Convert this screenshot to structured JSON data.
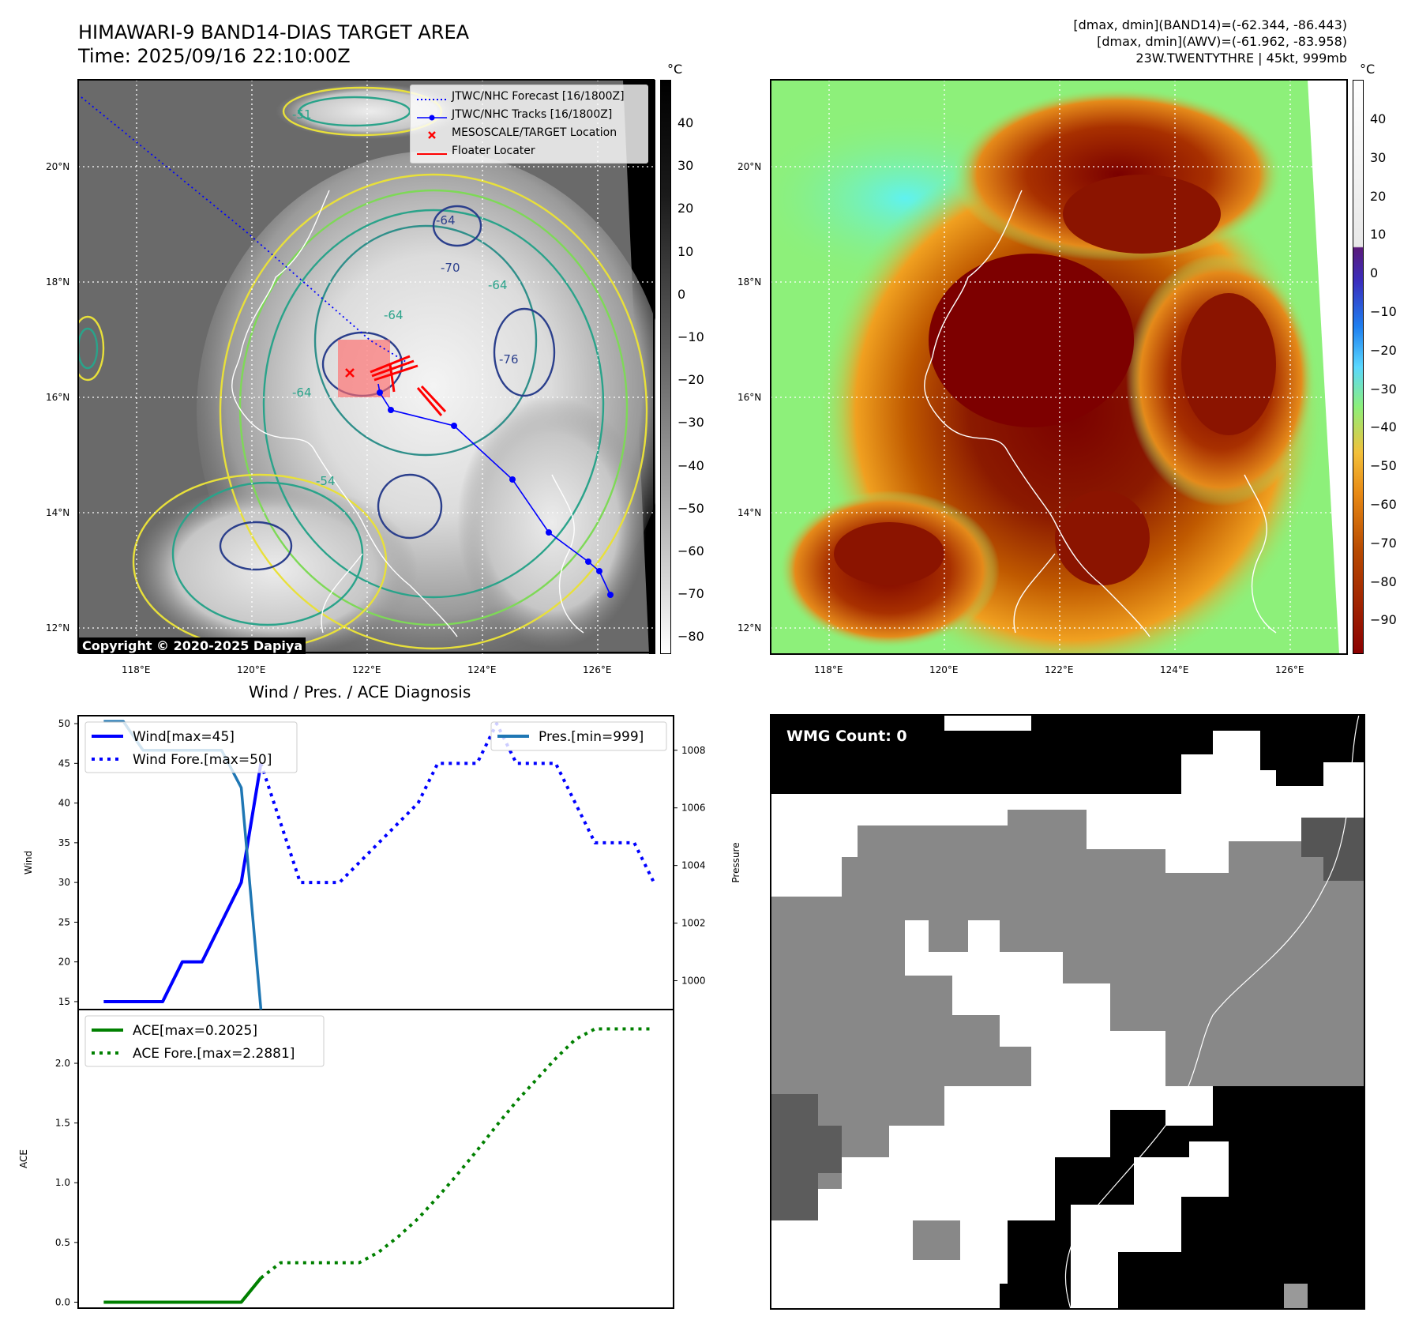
{
  "header": {
    "title_line1": "HIMAWARI-9 BAND14-DIAS TARGET AREA",
    "title_line2": "Time: 2025/09/16 22:10:00Z",
    "info_line1": "[dmax, dmin](BAND14)=(-62.344, -86.443)",
    "info_line2": "[dmax, dmin](AWV)=(-61.962, -83.958)",
    "info_line3": "23W.TWENTYTHRE | 45kt, 999mb"
  },
  "map_axes": {
    "lon_ticks": [
      "118°E",
      "120°E",
      "122°E",
      "124°E",
      "126°E"
    ],
    "lat_ticks": [
      "20°N",
      "18°N",
      "16°N",
      "14°N",
      "12°N"
    ]
  },
  "contour_labels": [
    "-64",
    "-64",
    "-64",
    "-64",
    "-51",
    "-54",
    "-76",
    "-70"
  ],
  "colorbar_left": {
    "unit": "°C",
    "ticks": [
      "40",
      "30",
      "20",
      "10",
      "0",
      "−10",
      "−20",
      "−30",
      "−40",
      "−50",
      "−60",
      "−70",
      "−80"
    ]
  },
  "colorbar_right": {
    "unit": "°C",
    "ticks": [
      "40",
      "30",
      "20",
      "10",
      "0",
      "−10",
      "−20",
      "−30",
      "−40",
      "−50",
      "−60",
      "−70",
      "−80",
      "−90"
    ]
  },
  "map_legend": [
    {
      "label": "JTWC/NHC Forecast [16/1800Z]",
      "color": "#0000ff",
      "style": "dotted"
    },
    {
      "label": "JTWC/NHC Tracks [16/1800Z]",
      "color": "#0000ff",
      "style": "line-dot"
    },
    {
      "label": "MESOSCALE/TARGET Location",
      "color": "#ff0000",
      "style": "x"
    },
    {
      "label": "Floater Locater",
      "color": "#ff0000",
      "style": "line"
    }
  ],
  "copyright": "Copyright © 2020-2025 Dapiya",
  "wmg_label": "WMG Count: 0",
  "chart_data": [
    {
      "type": "line",
      "title": "Wind / Pres. / ACE Diagnosis",
      "ylabel": "Wind",
      "ylabel_right": "Pressure",
      "ylim": [
        14,
        51
      ],
      "ylim_right": [
        999,
        1009.2
      ],
      "yticks": [
        "50",
        "45",
        "40",
        "35",
        "30",
        "25",
        "20",
        "15"
      ],
      "yticks_right": [
        "1008",
        "1006",
        "1004",
        "1002",
        "1000"
      ],
      "series": [
        {
          "name": "Wind[max=45]",
          "color": "#0000ff",
          "style": "solid",
          "x": [
            0,
            1,
            2,
            3,
            4,
            5,
            6,
            7,
            8
          ],
          "values": [
            15,
            15,
            15,
            15,
            20,
            20,
            25,
            30,
            45
          ]
        },
        {
          "name": "Wind Fore.[max=50]",
          "color": "#0000ff",
          "style": "dotted",
          "x": [
            8,
            9,
            10,
            11,
            12,
            13,
            14,
            15,
            16,
            17,
            18,
            19,
            20,
            21,
            22,
            23,
            24,
            25,
            26,
            27,
            28
          ],
          "values": [
            45,
            37.5,
            30,
            30,
            30,
            32.5,
            35,
            37.5,
            40,
            45,
            45,
            45,
            50,
            45,
            45,
            45,
            40,
            35,
            35,
            35,
            30
          ]
        },
        {
          "name": "Pres.[min=999]",
          "color": "#1f77b4",
          "style": "solid",
          "axis": "right",
          "x": [
            0,
            1,
            2,
            3,
            4,
            5,
            6,
            7,
            8
          ],
          "values": [
            1009,
            1009,
            1008,
            1008,
            1008,
            1008,
            1008,
            1006.7,
            999
          ]
        }
      ]
    },
    {
      "type": "line",
      "ylabel": "ACE",
      "ylim": [
        -0.05,
        2.45
      ],
      "yticks": [
        "2.0",
        "1.5",
        "1.0",
        "0.5",
        "0.0"
      ],
      "series": [
        {
          "name": "ACE[max=0.2025]",
          "color": "#008000",
          "style": "solid",
          "x": [
            0,
            1,
            2,
            3,
            4,
            5,
            6,
            7,
            8
          ],
          "values": [
            0,
            0,
            0,
            0,
            0,
            0,
            0,
            0,
            0.2025
          ]
        },
        {
          "name": "ACE Fore.[max=2.2881]",
          "color": "#008000",
          "style": "dotted",
          "x": [
            8,
            9,
            10,
            11,
            12,
            13,
            14,
            15,
            16,
            17,
            18,
            19,
            20,
            21,
            22,
            23,
            24,
            25,
            26,
            27,
            28
          ],
          "values": [
            0.2025,
            0.33,
            0.33,
            0.33,
            0.33,
            0.33,
            0.42,
            0.55,
            0.7,
            0.88,
            1.07,
            1.27,
            1.48,
            1.68,
            1.86,
            2.04,
            2.2,
            2.2881,
            2.2881,
            2.2881,
            2.2881
          ]
        }
      ]
    }
  ]
}
